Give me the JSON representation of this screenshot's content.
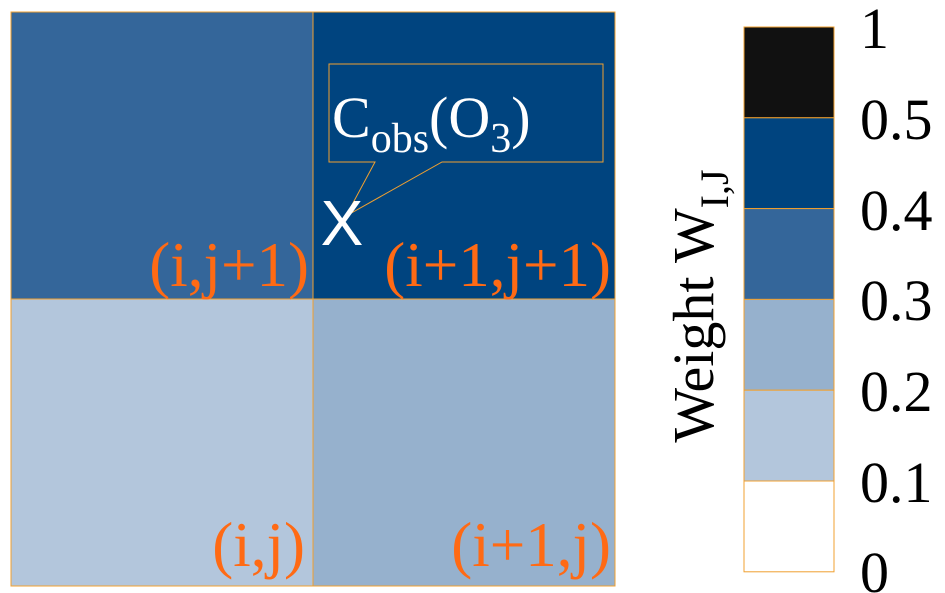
{
  "colors": {
    "cell_ij": "#b3c6dc",
    "cell_i1j": "#96b1cd",
    "cell_ij1": "#34669a",
    "cell_i1j1": "#00447f",
    "grid_line": "#f0a030",
    "label": "#ff6a14",
    "marker": "#ffffff",
    "colorbar_outline": "#f0a030"
  },
  "grid": {
    "cells": [
      {
        "label": "(i,j+1)",
        "weight_bin": 2
      },
      {
        "label": "(i+1,j+1)",
        "weight_bin": 4
      },
      {
        "label": "(i,j)",
        "weight_bin": 1
      },
      {
        "label": "(i+1,j)",
        "weight_bin": 2
      }
    ]
  },
  "observation": {
    "marker": "X",
    "callout": {
      "base": "C",
      "subscript": "obs",
      "open": "(O",
      "sub2": "3",
      "close": ")"
    }
  },
  "colorbar": {
    "title": "Weight W",
    "title_subscript": "I,J",
    "bins": [
      {
        "from": 0.5,
        "to": 1,
        "color": "#111111"
      },
      {
        "from": 0.4,
        "to": 0.5,
        "color": "#00447f"
      },
      {
        "from": 0.3,
        "to": 0.4,
        "color": "#34669a"
      },
      {
        "from": 0.2,
        "to": 0.3,
        "color": "#96b1cd"
      },
      {
        "from": 0.1,
        "to": 0.2,
        "color": "#b3c6dc"
      },
      {
        "from": 0,
        "to": 0.1,
        "color": "#ffffff"
      }
    ],
    "tick_labels": [
      "1",
      "0.5",
      "0.4",
      "0.3",
      "0.2",
      "0.1",
      "0"
    ]
  }
}
